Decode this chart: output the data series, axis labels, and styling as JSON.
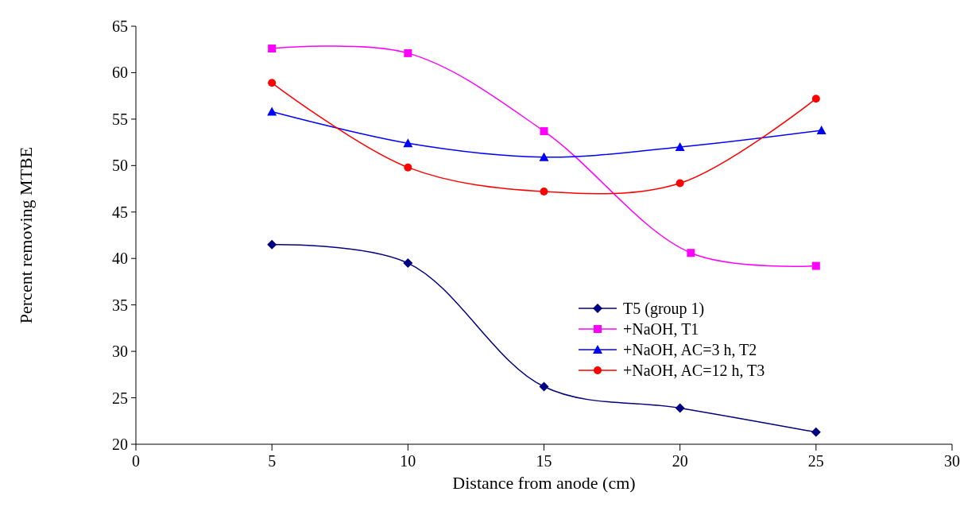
{
  "chart_data": {
    "type": "line",
    "xlabel": "Distance from anode (cm)",
    "ylabel": "Percent removing MTBE",
    "xlim": [
      0,
      30
    ],
    "xticks": [
      0,
      5,
      10,
      15,
      20,
      25,
      30
    ],
    "ylim": [
      20,
      65
    ],
    "yticks": [
      20,
      25,
      30,
      35,
      40,
      45,
      50,
      55,
      60,
      65
    ],
    "grid": false,
    "legend": "bottom right",
    "series": [
      {
        "name": "T5 (group 1)",
        "color": "#000080",
        "marker": "diamond",
        "x": [
          5,
          10,
          15,
          20,
          25
        ],
        "values": [
          41.5,
          39.5,
          26.2,
          23.9,
          21.3
        ]
      },
      {
        "name": "+NaOH, T1",
        "color": "#ff00ff",
        "marker": "square",
        "x": [
          5,
          10,
          15,
          20.4,
          25
        ],
        "values": [
          62.6,
          62.1,
          53.7,
          40.6,
          39.2
        ]
      },
      {
        "name": "+NaOH, AC=3 h, T2",
        "color": "#0000ff",
        "marker": "triangle",
        "x": [
          5,
          10,
          15,
          20,
          25.2
        ],
        "values": [
          55.8,
          52.4,
          50.9,
          52.0,
          53.8
        ]
      },
      {
        "name": "+NaOH, AC=12 h, T3",
        "color": "#ff0000",
        "marker": "circle",
        "x": [
          5,
          10,
          15,
          20,
          25
        ],
        "values": [
          58.9,
          49.8,
          47.2,
          48.1,
          57.2
        ]
      }
    ]
  }
}
